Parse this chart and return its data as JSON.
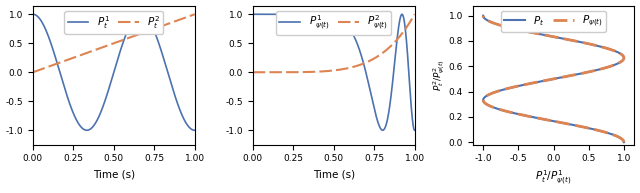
{
  "blue_color": "#4C72B0",
  "orange_color": "#DD8452",
  "fig_width": 6.4,
  "fig_height": 1.93,
  "dpi": 100,
  "left_xlabel": "Time (s)",
  "left_legend1": "$P_t^1$",
  "left_legend2": "$P_t^2$",
  "mid_legend1": "$P_{\\psi(t)}^1$",
  "mid_legend2": "$P_{\\psi(t)}^2$",
  "right_legend1": "$P_t$",
  "right_legend2": "$P_{\\psi(t)}$",
  "right_xlabel": "$P_t^1/P^1_{\\psi(t)}$",
  "right_ylabel": "$P_t^2/P^2_{\\psi(t)}$",
  "mid_xlabel": "Time (s)",
  "n_cycles": 1.5,
  "psi_power": 5
}
